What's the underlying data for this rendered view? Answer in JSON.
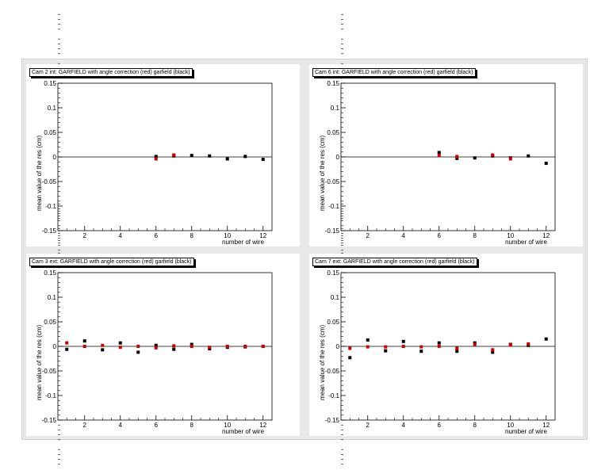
{
  "chart_data": [
    {
      "type": "scatter",
      "title": "Cam 2 int: GARFIELD with angle correction (red) garfield (black)",
      "xlabel": "number of wire",
      "ylabel": "mean value of the res (cm)",
      "xlim": [
        0.5,
        12.5
      ],
      "ylim": [
        -0.15,
        0.15
      ],
      "xticks": [
        "2",
        "4",
        "6",
        "8",
        "10",
        "12"
      ],
      "yticks": [
        "0.15",
        "0.1",
        "0.05",
        "0",
        "-0.05",
        "-0.1",
        "-0.15"
      ],
      "series": [
        {
          "color": "#000000",
          "x": [
            6,
            7,
            8,
            9,
            10,
            11,
            12
          ],
          "y": [
            0.001,
            0.002,
            0.003,
            0.002,
            -0.004,
            0.001,
            -0.005
          ]
        },
        {
          "color": "#d00000",
          "x": [
            6,
            7
          ],
          "y": [
            -0.004,
            0.004
          ]
        }
      ]
    },
    {
      "type": "scatter",
      "title": "Cam 6 int: GARFIELD with angle correction (red) garfield (black)",
      "xlabel": "number of wire",
      "ylabel": "mean value of the res (cm)",
      "xlim": [
        0.5,
        12.5
      ],
      "ylim": [
        -0.15,
        0.15
      ],
      "xticks": [
        "2",
        "4",
        "6",
        "8",
        "10",
        "12"
      ],
      "yticks": [
        "0.15",
        "0.1",
        "0.05",
        "0",
        "-0.05",
        "-0.1",
        "-0.15"
      ],
      "series": [
        {
          "color": "#000000",
          "x": [
            6,
            7,
            8,
            9,
            10,
            11,
            12
          ],
          "y": [
            0.009,
            -0.003,
            -0.002,
            0.002,
            -0.002,
            0.002,
            -0.013
          ]
        },
        {
          "color": "#d00000",
          "x": [
            6,
            7,
            9,
            10
          ],
          "y": [
            0.003,
            0.001,
            0.004,
            -0.004
          ]
        }
      ]
    },
    {
      "type": "scatter",
      "title": "Cam 3 ext: GARFIELD with angle correction (red) garfield (black)",
      "xlabel": "number of wire",
      "ylabel": "mean value of the res (cm)",
      "xlim": [
        0.5,
        12.5
      ],
      "ylim": [
        -0.15,
        0.15
      ],
      "xticks": [
        "2",
        "4",
        "6",
        "8",
        "10",
        "12"
      ],
      "yticks": [
        "0.15",
        "0.1",
        "0.05",
        "0",
        "-0.05",
        "-0.1",
        "-0.15"
      ],
      "series": [
        {
          "color": "#000000",
          "x": [
            1,
            2,
            3,
            4,
            5,
            6,
            7,
            8,
            9,
            10,
            11,
            12
          ],
          "y": [
            -0.006,
            0.011,
            -0.007,
            0.007,
            -0.012,
            0.002,
            -0.006,
            0.004,
            -0.005,
            -0.002,
            -0.001,
            0.0
          ]
        },
        {
          "color": "#d00000",
          "x": [
            1,
            2,
            3,
            4,
            5,
            6,
            7,
            8,
            9,
            10,
            11,
            12
          ],
          "y": [
            0.007,
            0.0,
            0.002,
            -0.002,
            0.0,
            -0.003,
            0.001,
            0.0,
            -0.002,
            0.0,
            0.0,
            0.0
          ]
        }
      ]
    },
    {
      "type": "scatter",
      "title": "Cam 7 ext: GARFIELD with angle correction (red) garfield (black)",
      "xlabel": "number of wire",
      "ylabel": "mean value of the res (cm)",
      "xlim": [
        0.5,
        12.5
      ],
      "ylim": [
        -0.15,
        0.15
      ],
      "xticks": [
        "2",
        "4",
        "6",
        "8",
        "10",
        "12"
      ],
      "yticks": [
        "0.15",
        "0.1",
        "0.05",
        "0",
        "-0.05",
        "-0.1",
        "-0.15"
      ],
      "series": [
        {
          "color": "#000000",
          "x": [
            1,
            2,
            3,
            4,
            5,
            6,
            7,
            8,
            9,
            10,
            11,
            12
          ],
          "y": [
            -0.023,
            0.013,
            -0.009,
            0.01,
            -0.01,
            0.007,
            -0.01,
            0.007,
            -0.012,
            0.004,
            0.002,
            0.015
          ]
        },
        {
          "color": "#d00000",
          "x": [
            1,
            2,
            3,
            4,
            5,
            6,
            7,
            8,
            9,
            10,
            11
          ],
          "y": [
            -0.004,
            -0.001,
            -0.001,
            0.0,
            -0.001,
            0.0,
            -0.004,
            0.004,
            -0.007,
            0.003,
            0.005
          ]
        }
      ]
    }
  ]
}
